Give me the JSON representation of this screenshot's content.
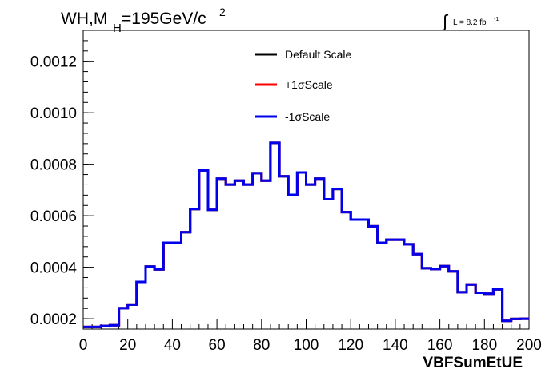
{
  "chart_data": {
    "type": "line",
    "title": "WH,M",
    "title_sub": "H",
    "title_rest": "=195GeV/c",
    "title_sup": "2",
    "lumi_prefix": "∫",
    "lumi_text": "L = 8.2 fb",
    "lumi_sup": "-1",
    "xlabel": "VBFSumEtUE",
    "xlim": [
      0,
      200
    ],
    "ylim": [
      0.00016,
      0.00132
    ],
    "xticks": [
      "0",
      "20",
      "40",
      "60",
      "80",
      "100",
      "120",
      "140",
      "160",
      "180",
      "200"
    ],
    "xtick_values": [
      0,
      20,
      40,
      60,
      80,
      100,
      120,
      140,
      160,
      180,
      200
    ],
    "yticks": [
      "0.0002",
      "0.0004",
      "0.0006",
      "0.0008",
      "0.0010",
      "0.0012"
    ],
    "ytick_values": [
      0.0002,
      0.0004,
      0.0006,
      0.0008,
      0.001,
      0.0012
    ],
    "bin_edges": [
      0,
      4,
      8,
      12,
      16,
      20,
      24,
      28,
      32,
      36,
      40,
      44,
      48,
      52,
      56,
      60,
      64,
      68,
      72,
      76,
      80,
      84,
      88,
      92,
      96,
      100,
      104,
      108,
      112,
      116,
      120,
      124,
      128,
      132,
      136,
      140,
      144,
      148,
      152,
      156,
      160,
      164,
      168,
      172,
      176,
      180,
      184,
      188,
      192,
      196,
      200
    ],
    "series": [
      {
        "name": "Default Scale",
        "color": "#000000",
        "values": [
          0.000168,
          0.000168,
          0.000172,
          0.000175,
          0.000241,
          0.000255,
          0.000343,
          0.000403,
          0.000392,
          0.000495,
          0.000495,
          0.000536,
          0.000626,
          0.000776,
          0.000623,
          0.000744,
          0.000721,
          0.000736,
          0.000721,
          0.000765,
          0.000736,
          0.000883,
          0.000753,
          0.000681,
          0.000768,
          0.000721,
          0.000744,
          0.000664,
          0.000704,
          0.000614,
          0.000585,
          0.000585,
          0.000559,
          0.000495,
          0.000507,
          0.000507,
          0.000489,
          0.000451,
          0.000396,
          0.000393,
          0.000404,
          0.000384,
          0.000303,
          0.000333,
          0.000301,
          0.000297,
          0.000314,
          0.000192,
          0.000199,
          0.0002
        ]
      },
      {
        "name": "+1σScale",
        "color": "#ff0000",
        "values": [
          0.000168,
          0.000168,
          0.000172,
          0.000175,
          0.000241,
          0.000255,
          0.000343,
          0.000403,
          0.000392,
          0.000495,
          0.000495,
          0.000536,
          0.000626,
          0.000776,
          0.000623,
          0.000744,
          0.000721,
          0.000736,
          0.000721,
          0.000765,
          0.000736,
          0.000883,
          0.000753,
          0.000681,
          0.000768,
          0.000721,
          0.000744,
          0.000664,
          0.000704,
          0.000614,
          0.000585,
          0.000585,
          0.000559,
          0.000495,
          0.000507,
          0.000507,
          0.000489,
          0.000451,
          0.000396,
          0.000393,
          0.000404,
          0.000384,
          0.000303,
          0.000333,
          0.000301,
          0.000297,
          0.000314,
          0.000192,
          0.000199,
          0.0002
        ]
      },
      {
        "name": "-1σScale",
        "color": "#0000ee",
        "values": [
          0.000168,
          0.000168,
          0.000172,
          0.000175,
          0.000241,
          0.000255,
          0.000343,
          0.000403,
          0.000392,
          0.000495,
          0.000495,
          0.000536,
          0.000626,
          0.000776,
          0.000623,
          0.000744,
          0.000721,
          0.000736,
          0.000721,
          0.000765,
          0.000736,
          0.000883,
          0.000753,
          0.000681,
          0.000768,
          0.000721,
          0.000744,
          0.000664,
          0.000704,
          0.000614,
          0.000585,
          0.000585,
          0.000559,
          0.000495,
          0.000507,
          0.000507,
          0.000489,
          0.000451,
          0.000396,
          0.000393,
          0.000404,
          0.000384,
          0.000303,
          0.000333,
          0.000301,
          0.000297,
          0.000314,
          0.000192,
          0.000199,
          0.0002
        ]
      }
    ],
    "legend_position": "top-center",
    "grid": false
  }
}
